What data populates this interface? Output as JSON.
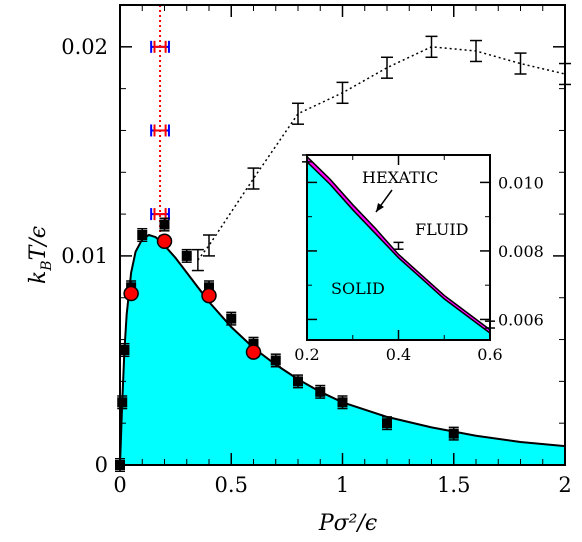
{
  "chart_data": {
    "type": "scatter",
    "title": "",
    "xlabel": "Pσ²/ϵ",
    "ylabel": "k_B T/ϵ",
    "xlim": [
      0,
      2
    ],
    "ylim": [
      0,
      0.022
    ],
    "x_ticks": [
      0,
      0.5,
      1,
      1.5,
      2
    ],
    "x_tick_labels": [
      "0",
      "0.5",
      "1",
      "1.5",
      "2"
    ],
    "y_ticks": [
      0,
      0.01,
      0.02
    ],
    "y_tick_labels": [
      "0",
      "0.01",
      "0.02"
    ],
    "grid": false,
    "legend": "none",
    "colors": {
      "solid_fill": "#00ffff",
      "hexatic_band": "#ff00ff",
      "red_markers": "#ff0000",
      "red_errorbar": "#ff0000",
      "blue_errorbar": "#0000ff",
      "black": "#000000"
    },
    "series": [
      {
        "kind": "curve_with_fill",
        "points": [
          [
            0.0,
            0.0
          ],
          [
            0.005,
            0.0015
          ],
          [
            0.01,
            0.003
          ],
          [
            0.02,
            0.0055
          ],
          [
            0.03,
            0.0072
          ],
          [
            0.05,
            0.0092
          ],
          [
            0.07,
            0.0102
          ],
          [
            0.1,
            0.0108
          ],
          [
            0.13,
            0.011
          ],
          [
            0.16,
            0.0109
          ],
          [
            0.2,
            0.0105
          ],
          [
            0.25,
            0.0099
          ],
          [
            0.3,
            0.0092
          ],
          [
            0.35,
            0.0085
          ],
          [
            0.4,
            0.0078
          ],
          [
            0.5,
            0.0066
          ],
          [
            0.6,
            0.0056
          ],
          [
            0.7,
            0.0048
          ],
          [
            0.8,
            0.0041
          ],
          [
            0.9,
            0.0035
          ],
          [
            1.0,
            0.003
          ],
          [
            1.2,
            0.0023
          ],
          [
            1.4,
            0.0018
          ],
          [
            1.6,
            0.0014
          ],
          [
            1.8,
            0.0011
          ],
          [
            2.0,
            0.0009
          ]
        ]
      },
      {
        "kind": "square_markers_errorbars",
        "points": [
          [
            0.0,
            0.0
          ],
          [
            0.01,
            0.003
          ],
          [
            0.02,
            0.0055
          ],
          [
            0.05,
            0.0085
          ],
          [
            0.1,
            0.011
          ],
          [
            0.2,
            0.0115
          ],
          [
            0.3,
            0.01
          ],
          [
            0.4,
            0.0085
          ],
          [
            0.5,
            0.007
          ],
          [
            0.6,
            0.0058
          ],
          [
            0.7,
            0.005
          ],
          [
            0.8,
            0.004
          ],
          [
            0.9,
            0.0035
          ],
          [
            1.0,
            0.003
          ],
          [
            1.2,
            0.002
          ],
          [
            1.5,
            0.0015
          ]
        ],
        "yerr": 0.0003
      },
      {
        "kind": "circle_markers",
        "points": [
          [
            0.05,
            0.0082
          ],
          [
            0.2,
            0.0107
          ],
          [
            0.4,
            0.0081
          ],
          [
            0.6,
            0.0054
          ]
        ]
      },
      {
        "kind": "dotted_errorbars",
        "points": [
          [
            0.35,
            0.0098
          ],
          [
            0.4,
            0.0105
          ],
          [
            0.6,
            0.0137
          ],
          [
            0.8,
            0.0168
          ],
          [
            1.0,
            0.0178
          ],
          [
            1.2,
            0.019
          ],
          [
            1.4,
            0.02
          ],
          [
            1.6,
            0.0198
          ],
          [
            1.8,
            0.0192
          ],
          [
            2.0,
            0.0187
          ]
        ],
        "yerr": 0.0005
      },
      {
        "kind": "horizontal_errorbars_vertical_line",
        "line_x": 0.18,
        "blue": {
          "points": [
            [
              0.18,
              0.02
            ],
            [
              0.18,
              0.016
            ],
            [
              0.18,
              0.012
            ]
          ],
          "xerr": 0.04
        },
        "red": {
          "points": [
            [
              0.18,
              0.02
            ],
            [
              0.18,
              0.016
            ],
            [
              0.18,
              0.012
            ]
          ],
          "xerr": 0.025
        }
      }
    ],
    "inset": {
      "xlim": [
        0.2,
        0.6
      ],
      "ylim": [
        0.0054,
        0.0108
      ],
      "x_ticks": [
        0.2,
        0.4,
        0.6
      ],
      "x_tick_labels": [
        "0.2",
        "0.4",
        "0.6"
      ],
      "y_ticks": [
        0.006,
        0.008,
        0.01
      ],
      "y_tick_labels": [
        "0.006",
        "0.008",
        "0.010"
      ],
      "labels": [
        "HEXATIC",
        "FLUID",
        "SOLID"
      ],
      "lower_curve": [
        [
          0.2,
          0.0106
        ],
        [
          0.25,
          0.00995
        ],
        [
          0.3,
          0.0092
        ],
        [
          0.35,
          0.0085
        ],
        [
          0.4,
          0.0078
        ],
        [
          0.45,
          0.0072
        ],
        [
          0.5,
          0.0066
        ],
        [
          0.55,
          0.0061
        ],
        [
          0.6,
          0.0056
        ]
      ],
      "upper_curve": [
        [
          0.2,
          0.01075
        ],
        [
          0.25,
          0.0101
        ],
        [
          0.3,
          0.00935
        ],
        [
          0.35,
          0.00865
        ],
        [
          0.4,
          0.0079
        ],
        [
          0.45,
          0.0073
        ],
        [
          0.5,
          0.0067
        ],
        [
          0.55,
          0.0062
        ],
        [
          0.6,
          0.0057
        ]
      ],
      "errorbar_points": [
        [
          0.2,
          0.0107
        ],
        [
          0.4,
          0.00815
        ],
        [
          0.6,
          0.00585
        ]
      ],
      "yerr": 0.0001
    }
  }
}
